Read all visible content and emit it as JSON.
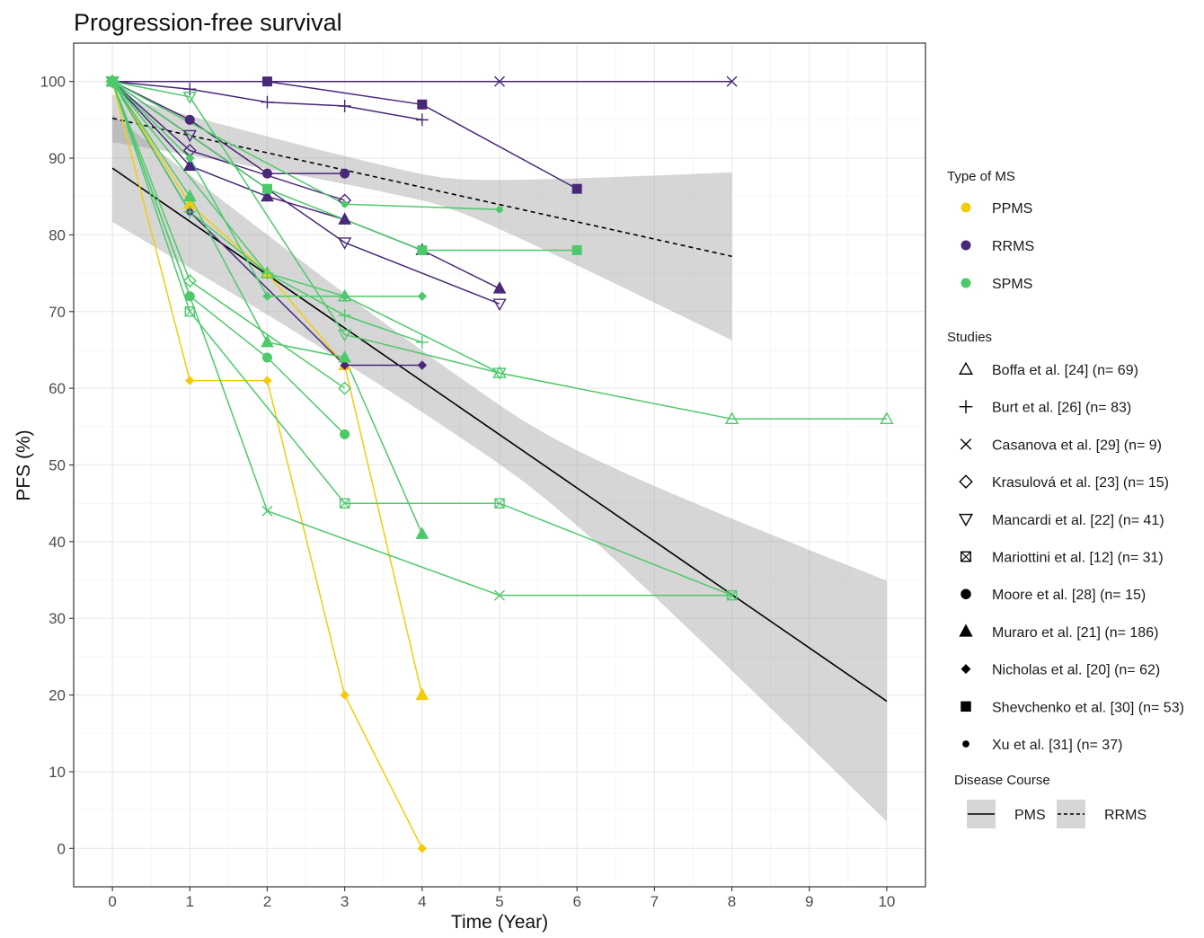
{
  "chart_data": {
    "type": "line",
    "title": "Progression-free survival",
    "xlabel": "Time (Year)",
    "ylabel": "PFS (%)",
    "xlim": [
      -0.5,
      10.5
    ],
    "ylim": [
      -5,
      105
    ],
    "xticks": [
      0,
      1,
      2,
      3,
      4,
      5,
      6,
      7,
      8,
      9,
      10
    ],
    "yticks": [
      0,
      10,
      20,
      30,
      40,
      50,
      60,
      70,
      80,
      90,
      100
    ],
    "grid": true,
    "legend_position": "right",
    "type_legend": {
      "title": "Type of MS",
      "items": [
        {
          "label": "PPMS",
          "color": "#f2cc0c"
        },
        {
          "label": "RRMS",
          "color": "#482878"
        },
        {
          "label": "SPMS",
          "color": "#4dc96b"
        }
      ]
    },
    "study_legend": {
      "title": "Studies",
      "items": [
        {
          "name": "Boffa et al. [24]",
          "n": "(n= 69)",
          "shape": "triangle-open"
        },
        {
          "name": "Burt et al. [26]",
          "n": "(n= 83)",
          "shape": "plus"
        },
        {
          "name": "Casanova et al. [29]",
          "n": "(n= 9)",
          "shape": "cross"
        },
        {
          "name": "Krasulová et al. [23]",
          "n": "(n= 15)",
          "shape": "diamond-open"
        },
        {
          "name": "Mancardi et al. [22]",
          "n": "(n= 41)",
          "shape": "triangle-down-open"
        },
        {
          "name": "Mariottini et al. [12]",
          "n": "(n= 31)",
          "shape": "square-cross"
        },
        {
          "name": "Moore et al. [28]",
          "n": "(n= 15)",
          "shape": "circle"
        },
        {
          "name": "Muraro et al. [21]",
          "n": "(n= 186)",
          "shape": "triangle"
        },
        {
          "name": "Nicholas et al. [20]",
          "n": "(n= 62)",
          "shape": "diamond"
        },
        {
          "name": "Shevchenko et al. [30]",
          "n": "(n= 53)",
          "shape": "square"
        },
        {
          "name": "Xu et al. [31]",
          "n": "(n= 37)",
          "shape": "circle-small"
        }
      ]
    },
    "course_legend": {
      "title": "Disease Course",
      "items": [
        {
          "label": "PMS",
          "line": "solid"
        },
        {
          "label": "RRMS",
          "line": "dashed"
        }
      ]
    },
    "series": [
      {
        "study": "Nicholas et al. [20]",
        "type": "PPMS",
        "shape": "diamond",
        "x": [
          0,
          1,
          2,
          3,
          4
        ],
        "y": [
          100,
          61,
          61,
          20,
          0
        ]
      },
      {
        "study": "Muraro et al. [21]",
        "type": "PPMS",
        "shape": "triangle",
        "x": [
          0,
          1,
          2,
          3,
          4
        ],
        "y": [
          100,
          84,
          75,
          63,
          20
        ]
      },
      {
        "study": "Shevchenko et al. [30]",
        "type": "RRMS",
        "shape": "square",
        "x": [
          0,
          2,
          4,
          6
        ],
        "y": [
          100,
          100,
          97,
          86
        ]
      },
      {
        "study": "Casanova et al. [29]",
        "type": "RRMS",
        "shape": "cross",
        "x": [
          0,
          5,
          8
        ],
        "y": [
          100,
          100,
          100
        ]
      },
      {
        "study": "Burt et al. [26]",
        "type": "RRMS",
        "shape": "plus",
        "x": [
          0,
          1,
          2,
          3,
          4
        ],
        "y": [
          100,
          99,
          97.3,
          96.8,
          95
        ]
      },
      {
        "study": "Moore et al. [28]",
        "type": "RRMS",
        "shape": "circle",
        "x": [
          0,
          1,
          2,
          3
        ],
        "y": [
          100,
          95,
          88,
          88
        ]
      },
      {
        "study": "Muraro et al. [21]",
        "type": "RRMS",
        "shape": "triangle",
        "x": [
          0,
          1,
          2,
          3,
          4,
          5
        ],
        "y": [
          100,
          89,
          85,
          82,
          78,
          73
        ]
      },
      {
        "study": "Mancardi et al. [22]",
        "type": "RRMS",
        "shape": "triangle-down-open",
        "x": [
          0,
          1,
          3,
          5
        ],
        "y": [
          100,
          93,
          79,
          71
        ]
      },
      {
        "study": "Krasulová et al. [23]",
        "type": "RRMS",
        "shape": "diamond-open",
        "x": [
          0,
          1,
          3
        ],
        "y": [
          100,
          91,
          84.5
        ]
      },
      {
        "study": "Nicholas et al. [20]",
        "type": "RRMS",
        "shape": "diamond",
        "x": [
          0,
          1,
          3,
          4
        ],
        "y": [
          100,
          83,
          63,
          63
        ]
      },
      {
        "study": "Mancardi et al. [22]",
        "type": "SPMS",
        "shape": "triangle-down-open",
        "x": [
          0,
          1,
          3,
          5
        ],
        "y": [
          100,
          98,
          67,
          62
        ]
      },
      {
        "study": "Shevchenko et al. [30]",
        "type": "SPMS",
        "shape": "square",
        "x": [
          0,
          2,
          4,
          6
        ],
        "y": [
          100,
          86,
          78,
          78
        ]
      },
      {
        "study": "Xu et al. [31]",
        "type": "SPMS",
        "shape": "circle-small",
        "x": [
          0,
          3,
          5
        ],
        "y": [
          100,
          84,
          83.3
        ]
      },
      {
        "study": "Burt et al. [26]",
        "type": "SPMS",
        "shape": "plus",
        "x": [
          0,
          1,
          2,
          3,
          4
        ],
        "y": [
          100,
          83,
          75,
          69.5,
          66
        ]
      },
      {
        "study": "Boffa et al. [24]",
        "type": "SPMS",
        "shape": "triangle-open",
        "x": [
          0,
          2,
          3,
          5,
          8,
          10
        ],
        "y": [
          100,
          75,
          72,
          62,
          56,
          56
        ]
      },
      {
        "study": "Nicholas et al. [20]",
        "type": "SPMS",
        "shape": "diamond",
        "x": [
          0,
          1,
          2,
          3,
          4
        ],
        "y": [
          100,
          90,
          72,
          72,
          72
        ]
      },
      {
        "study": "Muraro et al. [21]",
        "type": "SPMS",
        "shape": "triangle",
        "x": [
          0,
          1,
          2,
          3,
          4
        ],
        "y": [
          100,
          85,
          66,
          64,
          41
        ]
      },
      {
        "study": "Krasulová et al. [23]",
        "type": "SPMS",
        "shape": "diamond-open",
        "x": [
          0,
          1,
          3
        ],
        "y": [
          100,
          74,
          60
        ]
      },
      {
        "study": "Moore et al. [28]",
        "type": "SPMS",
        "shape": "circle",
        "x": [
          0,
          1,
          2,
          3
        ],
        "y": [
          100,
          72,
          64,
          54
        ]
      },
      {
        "study": "Mariottini et al. [12]",
        "type": "SPMS",
        "shape": "square-cross",
        "x": [
          0,
          1,
          3,
          5,
          8
        ],
        "y": [
          100,
          70,
          45,
          45,
          33
        ]
      },
      {
        "study": "Casanova et al. [29]",
        "type": "SPMS",
        "shape": "cross",
        "x": [
          0,
          2,
          5,
          8
        ],
        "y": [
          100,
          44,
          33,
          33
        ]
      }
    ],
    "trend_lines": [
      {
        "course": "PMS",
        "line": "solid",
        "x": [
          0,
          10
        ],
        "y": [
          88.7,
          19.2
        ],
        "ci_lower": [
          81.7,
          3.5
        ],
        "ci_upper": [
          95.7,
          34.9
        ]
      },
      {
        "course": "RRMS",
        "line": "dashed",
        "x": [
          0,
          8
        ],
        "y": [
          95.2,
          77.2
        ],
        "ci_lower": [
          92.1,
          66.3
        ],
        "ci_upper": [
          98.3,
          88.2
        ]
      }
    ]
  }
}
